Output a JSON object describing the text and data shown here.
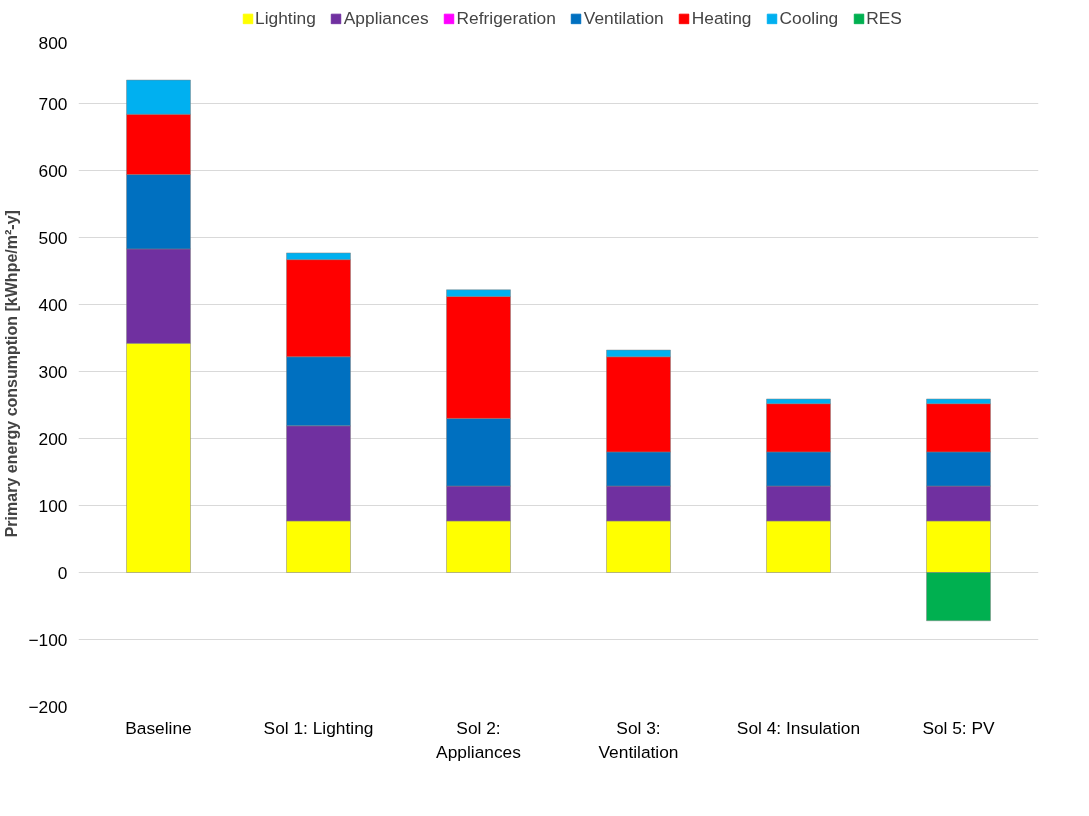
{
  "chart_data": {
    "type": "bar",
    "stacked": true,
    "ylabel": "Primary energy consumption  [kWhpe/m²-y]",
    "categories": [
      "Baseline",
      "Sol 1: Lighting",
      "Sol 2:\nAppliances",
      "Sol 3:\nVentilation",
      "Sol 4: Insulation",
      "Sol 5: PV"
    ],
    "series": [
      {
        "name": "Lighting",
        "color": "#ffff00",
        "values": [
          342,
          77,
          77,
          77,
          77,
          77
        ]
      },
      {
        "name": "Appliances",
        "color": "#7030a0",
        "values": [
          141,
          142,
          52,
          52,
          52,
          52
        ]
      },
      {
        "name": "Refrigeration",
        "color": "#ff00ff",
        "values": [
          null,
          null,
          null,
          null,
          null,
          null
        ]
      },
      {
        "name": "Ventilation",
        "color": "#0070c0",
        "values": [
          111,
          103,
          101,
          51,
          51,
          51
        ]
      },
      {
        "name": "Heating",
        "color": "#ff0000",
        "values": [
          90,
          145,
          182,
          142,
          72,
          72
        ]
      },
      {
        "name": "Cooling",
        "color": "#00b0f0",
        "values": [
          51,
          10,
          10,
          10,
          7,
          7
        ]
      },
      {
        "name": "RES",
        "color": "#00b050",
        "values": [
          null,
          null,
          null,
          null,
          null,
          -72
        ]
      }
    ],
    "ylim": [
      -200,
      800
    ],
    "yticks": [
      -200,
      -100,
      0,
      100,
      200,
      300,
      400,
      500,
      600,
      700,
      800
    ],
    "grid": "y",
    "legend": "top"
  }
}
